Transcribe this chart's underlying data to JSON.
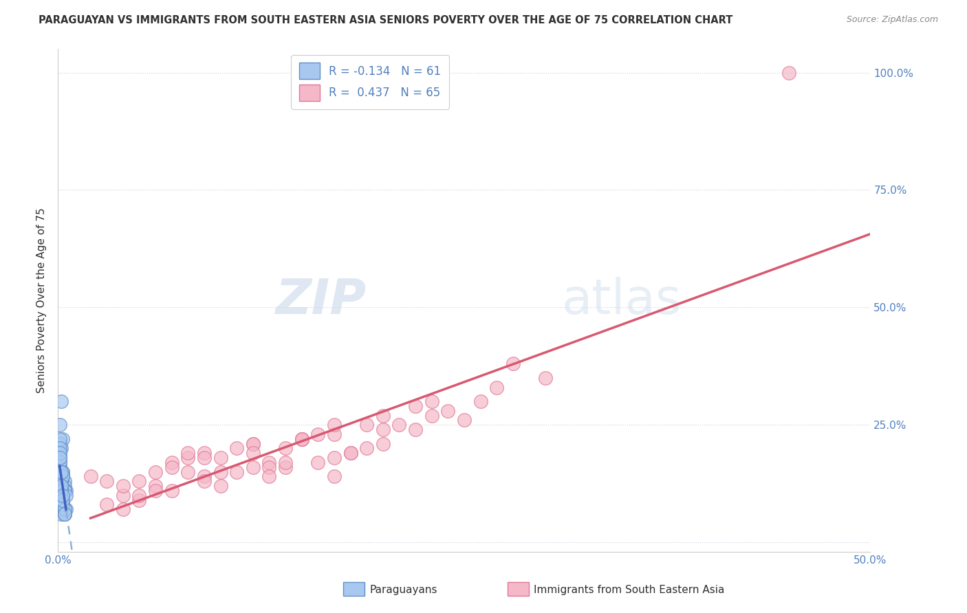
{
  "title": "PARAGUAYAN VS IMMIGRANTS FROM SOUTH EASTERN ASIA SENIORS POVERTY OVER THE AGE OF 75 CORRELATION CHART",
  "source": "Source: ZipAtlas.com",
  "ylabel": "Seniors Poverty Over the Age of 75",
  "xlim": [
    0.0,
    0.5
  ],
  "ylim": [
    -0.02,
    1.05
  ],
  "legend_R1": "-0.134",
  "legend_N1": "61",
  "legend_R2": "0.437",
  "legend_N2": "65",
  "blue_color": "#a8c8f0",
  "blue_edge_color": "#6090c8",
  "pink_color": "#f5b8c8",
  "pink_edge_color": "#e07898",
  "blue_line_solid_color": "#4060c0",
  "blue_line_dash_color": "#90b0d8",
  "pink_line_color": "#d85870",
  "grid_color": "#d0d0e0",
  "title_color": "#303030",
  "tick_label_color": "#5080c0",
  "label_color": "#5080c0",
  "source_color": "#888888",
  "watermark_color": "#d0dcf0",
  "background_color": "#ffffff",
  "paraguayan_x": [
    0.001,
    0.002,
    0.001,
    0.003,
    0.002,
    0.001,
    0.004,
    0.002,
    0.001,
    0.003,
    0.002,
    0.001,
    0.003,
    0.002,
    0.004,
    0.001,
    0.002,
    0.005,
    0.001,
    0.002,
    0.003,
    0.001,
    0.002,
    0.003,
    0.004,
    0.001,
    0.002,
    0.003,
    0.004,
    0.001,
    0.002,
    0.003,
    0.004,
    0.001,
    0.002,
    0.003,
    0.005,
    0.001,
    0.002,
    0.003,
    0.004,
    0.001,
    0.002,
    0.002,
    0.003,
    0.004,
    0.005,
    0.001,
    0.002,
    0.003,
    0.003,
    0.004,
    0.001,
    0.002,
    0.002,
    0.003,
    0.004,
    0.001,
    0.002,
    0.003,
    0.002
  ],
  "paraguayan_y": [
    0.15,
    0.12,
    0.18,
    0.1,
    0.2,
    0.08,
    0.13,
    0.09,
    0.16,
    0.11,
    0.07,
    0.14,
    0.22,
    0.06,
    0.12,
    0.17,
    0.09,
    0.11,
    0.25,
    0.08,
    0.14,
    0.19,
    0.1,
    0.15,
    0.07,
    0.21,
    0.12,
    0.08,
    0.11,
    0.16,
    0.13,
    0.09,
    0.06,
    0.18,
    0.1,
    0.14,
    0.07,
    0.22,
    0.12,
    0.08,
    0.11,
    0.17,
    0.13,
    0.09,
    0.15,
    0.06,
    0.1,
    0.2,
    0.12,
    0.08,
    0.14,
    0.07,
    0.19,
    0.11,
    0.15,
    0.09,
    0.06,
    0.18,
    0.12,
    0.1,
    0.3
  ],
  "immigrant_x": [
    0.02,
    0.04,
    0.06,
    0.08,
    0.1,
    0.12,
    0.14,
    0.16,
    0.18,
    0.2,
    0.03,
    0.05,
    0.07,
    0.09,
    0.11,
    0.13,
    0.15,
    0.17,
    0.19,
    0.22,
    0.04,
    0.06,
    0.08,
    0.1,
    0.12,
    0.14,
    0.16,
    0.18,
    0.21,
    0.24,
    0.05,
    0.07,
    0.09,
    0.11,
    0.13,
    0.15,
    0.17,
    0.2,
    0.23,
    0.26,
    0.03,
    0.05,
    0.08,
    0.1,
    0.12,
    0.14,
    0.17,
    0.19,
    0.22,
    0.25,
    0.04,
    0.07,
    0.09,
    0.12,
    0.15,
    0.17,
    0.2,
    0.23,
    0.27,
    0.3,
    0.06,
    0.09,
    0.13,
    0.28,
    0.45
  ],
  "immigrant_y": [
    0.14,
    0.1,
    0.12,
    0.15,
    0.18,
    0.16,
    0.2,
    0.17,
    0.19,
    0.21,
    0.08,
    0.13,
    0.11,
    0.19,
    0.15,
    0.17,
    0.22,
    0.14,
    0.2,
    0.24,
    0.12,
    0.15,
    0.18,
    0.12,
    0.21,
    0.16,
    0.23,
    0.19,
    0.25,
    0.28,
    0.09,
    0.17,
    0.14,
    0.2,
    0.16,
    0.22,
    0.18,
    0.24,
    0.27,
    0.3,
    0.13,
    0.1,
    0.19,
    0.15,
    0.21,
    0.17,
    0.23,
    0.25,
    0.29,
    0.26,
    0.07,
    0.16,
    0.13,
    0.19,
    0.22,
    0.25,
    0.27,
    0.3,
    0.33,
    0.35,
    0.11,
    0.18,
    0.14,
    0.38,
    1.0
  ]
}
